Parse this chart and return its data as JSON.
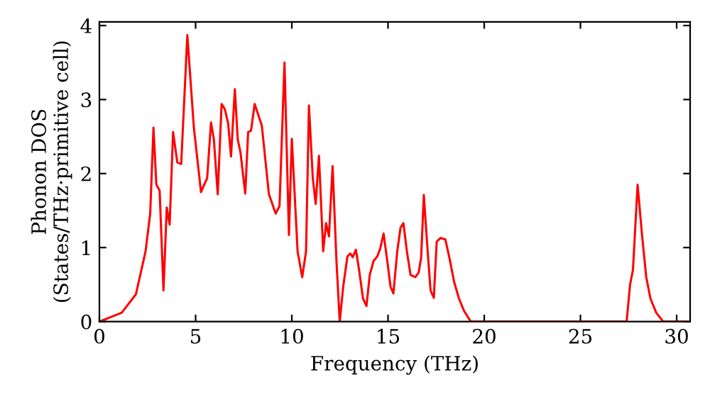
{
  "chart_data": {
    "type": "line",
    "xlabel": "Frequency (THz)",
    "ylabel": "Phonon DOS\n(States/THz·primitive cell)",
    "xlim": [
      0,
      30.7
    ],
    "ylim": [
      0,
      4.05
    ],
    "xticks": [
      0,
      5,
      10,
      15,
      20,
      25,
      30
    ],
    "yticks": [
      0,
      1,
      2,
      3,
      4
    ],
    "grid": false,
    "legend": false,
    "marker": "none",
    "line_style": "solid",
    "series": [
      {
        "color": "#ff0000",
        "x": [
          0,
          1.16,
          1.9,
          2.4,
          2.64,
          2.81,
          2.96,
          3.13,
          3.33,
          3.5,
          3.65,
          3.83,
          4.05,
          4.25,
          4.57,
          4.91,
          5.28,
          5.6,
          5.8,
          5.95,
          6.15,
          6.35,
          6.52,
          6.69,
          6.84,
          7.04,
          7.19,
          7.33,
          7.58,
          7.73,
          7.88,
          8.07,
          8.44,
          8.81,
          9.16,
          9.36,
          9.62,
          9.85,
          10.0,
          10.3,
          10.54,
          10.74,
          10.89,
          11.09,
          11.24,
          11.41,
          11.63,
          11.78,
          11.93,
          12.12,
          12.32,
          12.49,
          12.67,
          12.89,
          13.04,
          13.16,
          13.33,
          13.5,
          13.7,
          13.88,
          14.05,
          14.25,
          14.44,
          14.59,
          14.77,
          14.96,
          15.13,
          15.28,
          15.48,
          15.65,
          15.8,
          15.98,
          16.17,
          16.42,
          16.59,
          16.72,
          16.86,
          17.06,
          17.21,
          17.38,
          17.53,
          17.73,
          17.98,
          18.2,
          18.44,
          18.69,
          18.94,
          19.3,
          27.4,
          27.58,
          27.73,
          27.97,
          28.2,
          28.42,
          28.64,
          28.94,
          29.3,
          30.5
        ],
        "values": [
          0,
          0.12,
          0.37,
          0.95,
          1.46,
          2.62,
          1.85,
          1.77,
          0.42,
          1.54,
          1.31,
          2.56,
          2.15,
          2.13,
          3.87,
          2.62,
          1.75,
          1.94,
          2.69,
          2.46,
          1.72,
          2.94,
          2.87,
          2.68,
          2.23,
          3.14,
          2.46,
          2.29,
          1.73,
          2.56,
          2.58,
          2.94,
          2.65,
          1.72,
          1.46,
          1.56,
          3.5,
          1.17,
          2.47,
          0.95,
          0.6,
          0.95,
          2.92,
          1.94,
          1.59,
          2.24,
          0.95,
          1.33,
          1.15,
          2.1,
          0.82,
          0,
          0.47,
          0.88,
          0.92,
          0.87,
          0.97,
          0.69,
          0.31,
          0.21,
          0.63,
          0.82,
          0.88,
          0.98,
          1.19,
          0.82,
          0.47,
          0.38,
          0.95,
          1.27,
          1.33,
          0.95,
          0.63,
          0.6,
          0.66,
          0.86,
          1.71,
          0.95,
          0.42,
          0.32,
          1.08,
          1.13,
          1.11,
          0.85,
          0.53,
          0.31,
          0.15,
          0,
          0,
          0.5,
          0.7,
          1.85,
          1.17,
          0.6,
          0.31,
          0.12,
          0,
          0
        ]
      }
    ]
  }
}
